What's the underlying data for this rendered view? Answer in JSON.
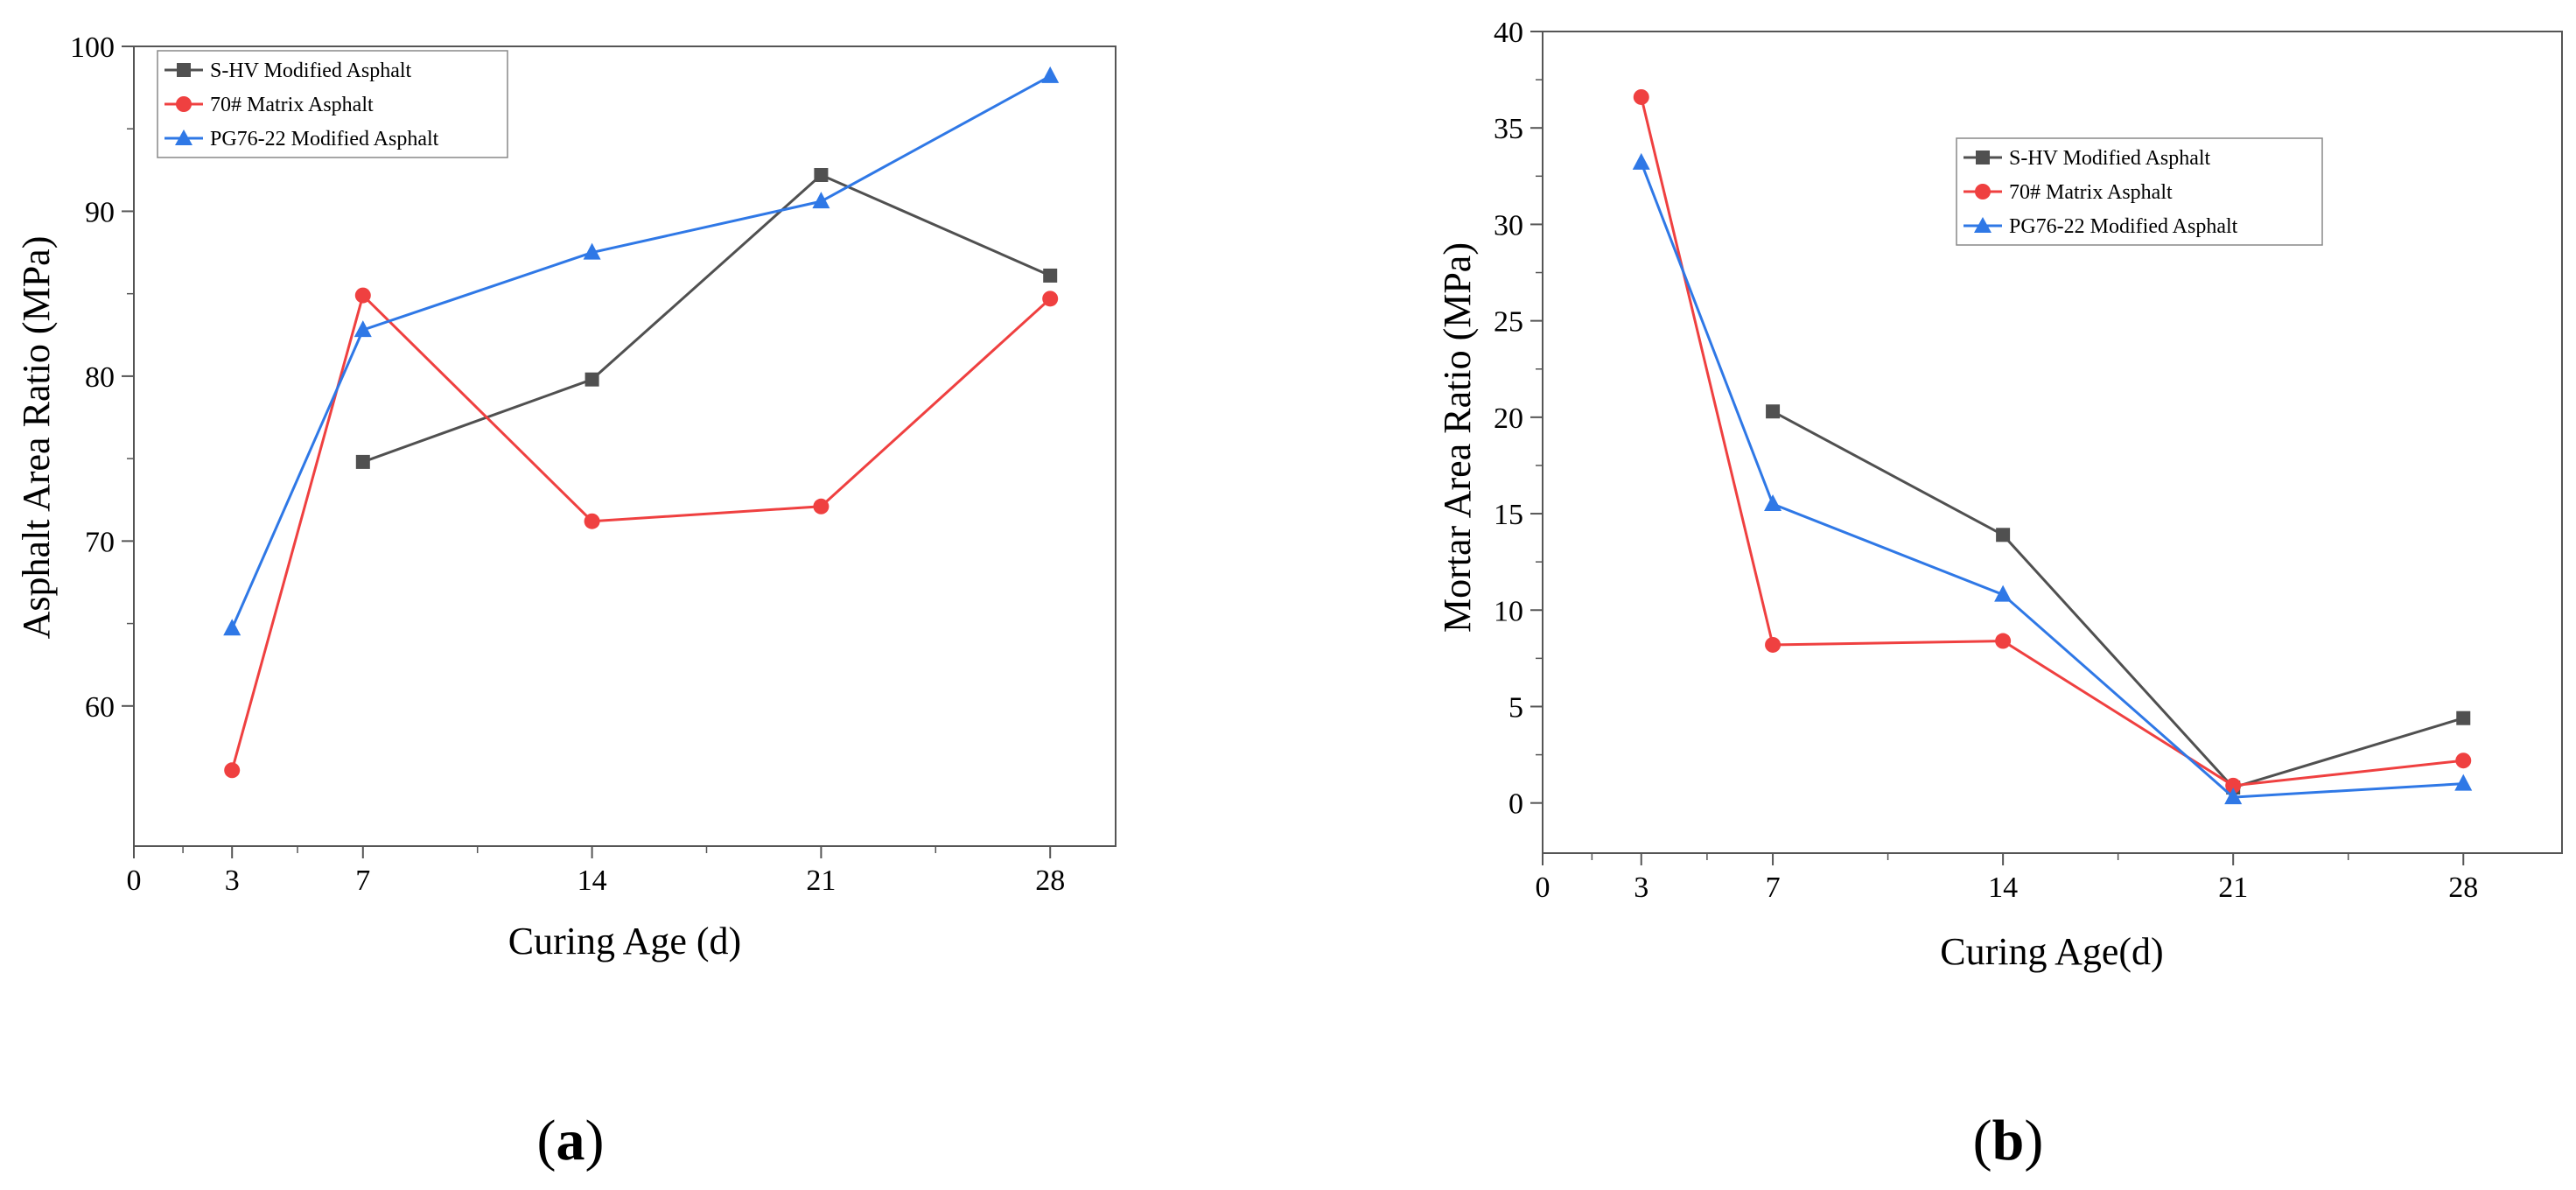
{
  "chart_data": [
    {
      "panel": "a",
      "type": "line",
      "label_prefix": "(",
      "label_letter": "a",
      "label_suffix": ")",
      "xlabel": "Curing Age (d)",
      "ylabel": "Asphalt Area Ratio (MPa)",
      "xlim": [
        0,
        30
      ],
      "ylim": [
        51.5,
        100
      ],
      "xticks": [
        0,
        3,
        7,
        14,
        21,
        28
      ],
      "yticks": [
        60,
        70,
        80,
        90,
        100
      ],
      "legend_position": "top-left",
      "series": [
        {
          "name": "S-HV Modified Asphalt",
          "color": "#505050",
          "marker": "square",
          "x": [
            7,
            14,
            21,
            28
          ],
          "y": [
            74.8,
            79.8,
            92.2,
            86.1
          ]
        },
        {
          "name": "70# Matrix Asphalt",
          "color": "#ef4040",
          "marker": "circle",
          "x": [
            3,
            7,
            14,
            21,
            28
          ],
          "y": [
            56.1,
            84.9,
            71.2,
            72.1,
            84.7
          ]
        },
        {
          "name": "PG76-22 Modified Asphalt",
          "color": "#2f78e6",
          "marker": "triangle",
          "x": [
            3,
            7,
            14,
            21,
            28
          ],
          "y": [
            64.7,
            82.8,
            87.5,
            90.6,
            98.2
          ]
        }
      ]
    },
    {
      "panel": "b",
      "type": "line",
      "label_prefix": "(",
      "label_letter": "b",
      "label_suffix": ")",
      "xlabel": "Curing Age(d)",
      "ylabel": "Mortar Area Ratio (MPa)",
      "xlim": [
        0,
        31
      ],
      "ylim": [
        -2.6,
        40
      ],
      "xticks": [
        0,
        3,
        7,
        14,
        21,
        28
      ],
      "yticks": [
        0,
        5,
        10,
        15,
        20,
        25,
        30,
        35,
        40
      ],
      "legend_position": "top-right",
      "series": [
        {
          "name": "S-HV Modified Asphalt",
          "color": "#505050",
          "marker": "square",
          "x": [
            7,
            14,
            21,
            28
          ],
          "y": [
            20.3,
            13.9,
            0.8,
            4.4
          ]
        },
        {
          "name": "70# Matrix Asphalt",
          "color": "#ef4040",
          "marker": "circle",
          "x": [
            3,
            7,
            14,
            21,
            28
          ],
          "y": [
            36.6,
            8.2,
            8.4,
            0.9,
            2.2
          ]
        },
        {
          "name": "PG76-22 Modified Asphalt",
          "color": "#2f78e6",
          "marker": "triangle",
          "x": [
            3,
            7,
            14,
            21,
            28
          ],
          "y": [
            33.2,
            15.5,
            10.8,
            0.3,
            1.0
          ]
        }
      ]
    }
  ]
}
